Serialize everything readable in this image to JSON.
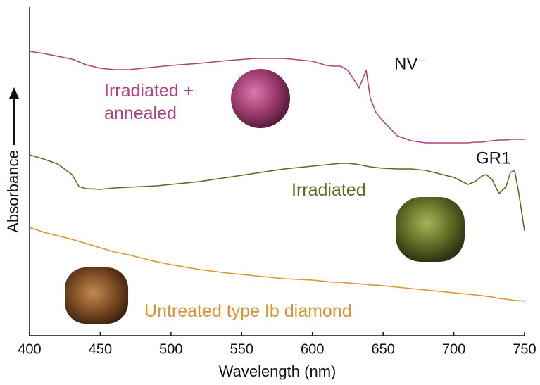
{
  "chart_data": {
    "type": "line",
    "x_label": "Wavelength (nm)",
    "y_label": "Absorbance",
    "x": [
      400,
      410,
      420,
      430,
      435,
      440,
      450,
      460,
      470,
      480,
      490,
      500,
      520,
      540,
      560,
      580,
      600,
      610,
      615,
      620,
      625,
      630,
      633,
      636,
      638,
      641,
      645,
      650,
      660,
      670,
      680,
      690,
      700,
      710,
      715,
      720,
      723,
      727,
      732,
      737,
      740,
      743,
      746,
      750
    ],
    "xlim": [
      400,
      750
    ],
    "xticks": [
      400,
      450,
      500,
      550,
      600,
      650,
      700,
      750
    ],
    "ylim": [
      0,
      467
    ],
    "series": [
      {
        "name": "Irradiated + annealed",
        "color": "#b0407f",
        "values": [
          404,
          401,
          397,
          393,
          389,
          385,
          380,
          378,
          378,
          380,
          382,
          384,
          387,
          391,
          394,
          394,
          390,
          384,
          383,
          383,
          377,
          362,
          352,
          367,
          377,
          337,
          317,
          305,
          284,
          277,
          274,
          274,
          274,
          274,
          275,
          275,
          276,
          277,
          278,
          278,
          279,
          279,
          279,
          279
        ]
      },
      {
        "name": "Irradiated",
        "color": "#5b6b22",
        "values": [
          257,
          251,
          244,
          229,
          212,
          209,
          208,
          210,
          211,
          212,
          213,
          215,
          219,
          225,
          231,
          237,
          241,
          243,
          244,
          245,
          245,
          244,
          243,
          242,
          241,
          240,
          239,
          238,
          237,
          237,
          235,
          230,
          225,
          215,
          219,
          227,
          229,
          222,
          202,
          212,
          232,
          235,
          202,
          149
        ]
      },
      {
        "name": "Untreated type Ib diamond",
        "color": "#d9952f",
        "values": [
          154,
          147,
          142,
          137,
          134,
          131,
          125,
          119,
          115,
          110,
          105,
          101,
          94,
          89,
          85,
          81,
          79,
          77,
          76,
          76,
          75,
          74,
          74,
          73,
          73,
          72,
          72,
          71,
          69,
          67,
          65,
          63,
          61,
          59,
          58,
          57,
          56,
          55,
          53,
          52,
          51,
          50,
          50,
          49
        ]
      }
    ],
    "annotations": [
      "NV⁻",
      "GR1"
    ]
  }
}
